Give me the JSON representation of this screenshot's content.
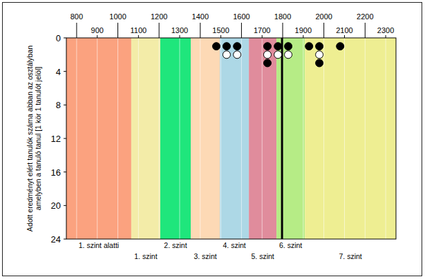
{
  "chart_data": {
    "type": "scatter",
    "y_label": [
      "Adott eredményt elért tanulók száma abban az osztályban",
      "amelyben a tanuló tanul [1 kör 1 tanulót jelöl]"
    ],
    "xlim": [
      750,
      2350
    ],
    "xticks": [
      800,
      900,
      1000,
      1100,
      1200,
      1300,
      1400,
      1500,
      1600,
      1700,
      1800,
      1900,
      2000,
      2100,
      2200,
      2300
    ],
    "ylim": [
      0,
      24
    ],
    "yticks": [
      0,
      4,
      8,
      12,
      16,
      20,
      24
    ],
    "grid": true,
    "bands": [
      {
        "label": "1. szint alatti",
        "from": 750,
        "to": 1065,
        "color": "#fba27f"
      },
      {
        "label": "1. szint",
        "from": 1065,
        "to": 1206,
        "color": "#f3eca8"
      },
      {
        "label": "2. szint",
        "from": 1206,
        "to": 1354,
        "color": "#1fe67c"
      },
      {
        "label": "3. szint",
        "from": 1354,
        "to": 1495,
        "color": "#fdd9b5"
      },
      {
        "label": "4. szint",
        "from": 1495,
        "to": 1636,
        "color": "#add8e6"
      },
      {
        "label": "5. szint",
        "from": 1636,
        "to": 1770,
        "color": "#e08c9c"
      },
      {
        "label": "6. szint",
        "from": 1770,
        "to": 1908,
        "color": "#b6ec86"
      },
      {
        "label": "7. szint",
        "from": 1908,
        "to": 2350,
        "color": "#eeee92"
      }
    ],
    "reference_line": 1797,
    "series": [
      {
        "color": "#000000",
        "marker": "filled",
        "x": [
          1478,
          1528,
          1579,
          1726,
          1777,
          1827,
          1928,
          1978,
          2079,
          1726,
          1978
        ],
        "values": [
          1,
          1,
          1,
          1,
          1,
          1,
          1,
          1,
          1,
          3,
          3
        ]
      },
      {
        "color": "#ffffff",
        "marker": "open",
        "x": [
          1528,
          1579,
          1726,
          1777,
          1827,
          1978
        ],
        "values": [
          2,
          2,
          2,
          2,
          2,
          2
        ]
      }
    ]
  }
}
